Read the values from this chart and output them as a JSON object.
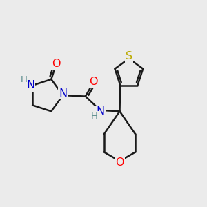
{
  "background_color": "#ebebeb",
  "bond_color": "#1a1a1a",
  "bond_width": 1.8,
  "atom_colors": {
    "O": "#ff0000",
    "N": "#0000cc",
    "S": "#bbaa00",
    "NH": "#5f8f8f",
    "C": "#1a1a1a"
  },
  "font_size": 11.5,
  "font_size_H": 9.5
}
